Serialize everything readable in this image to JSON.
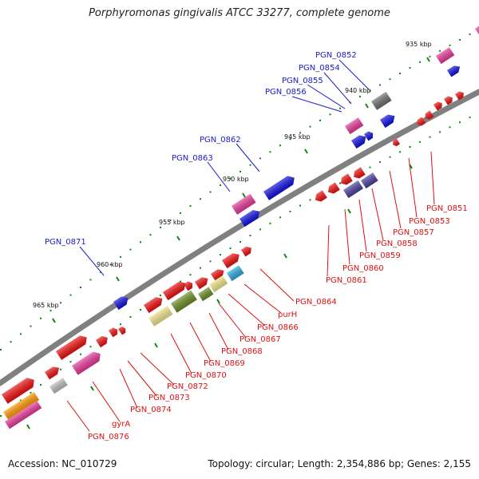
{
  "title": "Porphyromonas gingivalis ATCC 33277, complete genome",
  "footer": {
    "accession": "Accession: NC_010729",
    "summary": "Topology: circular; Length: 2,354,886 bp; Genes: 2,155"
  },
  "colors": {
    "backbone": "#808080",
    "top_label": "#1a1acc",
    "bottom_label": "#dd1111",
    "tick": "#0a8a0a",
    "pink": "#e83a9a",
    "blue": "#1010e0",
    "gray": "#6e6e6e",
    "red": "#f01010",
    "purple": "#4a3f9c",
    "olive": "#6b8e23",
    "khaki": "#f0e68c",
    "sky": "#2aaae0",
    "silver": "#bdbdbd",
    "orange": "#ff9900"
  },
  "scale_labels": [
    "935 kbp",
    "940 kbp",
    "945 kbp",
    "950 kbp",
    "955 kbp",
    "960 kbp",
    "965 kbp"
  ],
  "top_labels": [
    "PGN_0852",
    "PGN_0854",
    "PGN_0855",
    "PGN_0856",
    "PGN_0862",
    "PGN_0863",
    "PGN_0871"
  ],
  "bottom_labels": [
    "PGN_0851",
    "PGN_0853",
    "PGN_0857",
    "PGN_0858",
    "PGN_0859",
    "PGN_0860",
    "PGN_0861",
    "PGN_0864",
    "purH",
    "PGN_0866",
    "PGN_0867",
    "PGN_0868",
    "PGN_0869",
    "PGN_0870",
    "PGN_0872",
    "PGN_0873",
    "PGN_0874",
    "gyrA",
    "PGN_0876"
  ]
}
